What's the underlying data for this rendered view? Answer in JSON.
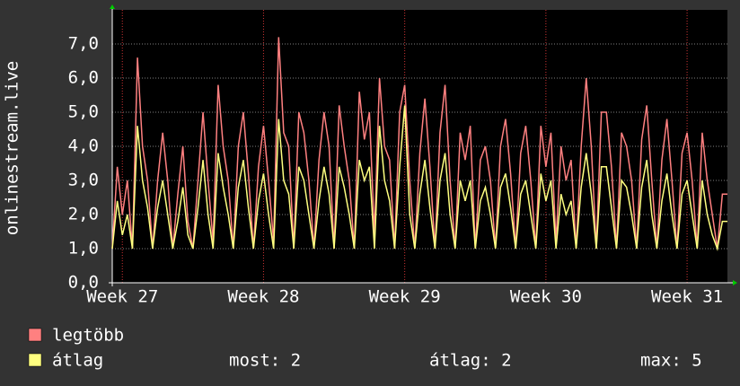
{
  "chart_data": {
    "type": "line",
    "ylabel": "onlinestream.live",
    "x": [
      0,
      0.25,
      0.5,
      0.75,
      1,
      1.25,
      1.5,
      1.75,
      2,
      2.25,
      2.5,
      2.75,
      3,
      3.25,
      3.5,
      3.75,
      4,
      4.25,
      4.5,
      4.75,
      5,
      5.25,
      5.5,
      5.75,
      6,
      6.25,
      6.5,
      6.75,
      7,
      7.25,
      7.5,
      7.75,
      8,
      8.25,
      8.5,
      8.75,
      9,
      9.25,
      9.5,
      9.75,
      10,
      10.25,
      10.5,
      10.75,
      11,
      11.25,
      11.5,
      11.75,
      12,
      12.25,
      12.5,
      12.75,
      13,
      13.25,
      13.5,
      13.75,
      14,
      14.25,
      14.5,
      14.75,
      15,
      15.25,
      15.5,
      15.75,
      16,
      16.25,
      16.5,
      16.75,
      17,
      17.25,
      17.5,
      17.75,
      18,
      18.25,
      18.5,
      18.75,
      19,
      19.25,
      19.5,
      19.75,
      20,
      20.25,
      20.5,
      20.75,
      21,
      21.25,
      21.5,
      21.75,
      22,
      22.25,
      22.5,
      22.75,
      23,
      23.25,
      23.5,
      23.75,
      24,
      24.25,
      24.5,
      24.75,
      25,
      25.25,
      25.5,
      25.75,
      26,
      26.25,
      26.5,
      26.75,
      27,
      27.25,
      27.5,
      27.75,
      28,
      28.25,
      28.5,
      28.75,
      29,
      29.25,
      29.5,
      29.75,
      30,
      30.25,
      30.5
    ],
    "series": [
      {
        "name": "legtöbb",
        "color": "#ff8080",
        "values": [
          1.0,
          3.4,
          2.0,
          3.0,
          1.0,
          6.6,
          4.0,
          3.0,
          1.0,
          3.0,
          4.4,
          3.0,
          1.0,
          2.6,
          4.0,
          1.8,
          1.0,
          3.0,
          5.0,
          3.0,
          1.2,
          5.8,
          4.0,
          3.0,
          1.0,
          4.0,
          5.0,
          3.2,
          1.0,
          3.4,
          4.6,
          3.0,
          1.2,
          7.2,
          4.4,
          4.0,
          1.0,
          5.0,
          4.4,
          3.0,
          1.0,
          3.6,
          5.0,
          4.0,
          1.0,
          5.2,
          4.0,
          3.0,
          1.0,
          5.6,
          4.2,
          5.0,
          1.4,
          6.0,
          4.0,
          3.6,
          1.0,
          5.0,
          5.8,
          3.0,
          1.0,
          3.8,
          5.4,
          3.4,
          1.0,
          4.4,
          5.8,
          3.0,
          1.0,
          4.4,
          3.6,
          4.6,
          1.0,
          3.6,
          4.0,
          3.0,
          1.0,
          4.0,
          4.8,
          3.2,
          1.0,
          3.8,
          4.6,
          3.0,
          1.0,
          4.6,
          3.4,
          4.4,
          1.2,
          4.0,
          3.0,
          3.6,
          1.0,
          4.0,
          6.0,
          4.0,
          1.0,
          5.0,
          5.0,
          3.4,
          1.0,
          4.4,
          4.0,
          3.0,
          1.0,
          4.2,
          5.2,
          3.0,
          1.0,
          3.6,
          4.8,
          3.0,
          1.0,
          3.8,
          4.4,
          3.0,
          1.0,
          4.4,
          3.0,
          2.0,
          1.0,
          2.6,
          2.6
        ]
      },
      {
        "name": "átlag",
        "color": "#ffff80",
        "values": [
          1.0,
          2.4,
          1.4,
          2.0,
          1.0,
          4.6,
          3.0,
          2.2,
          1.0,
          2.2,
          3.0,
          2.0,
          1.0,
          1.8,
          2.8,
          1.4,
          1.0,
          2.2,
          3.6,
          2.0,
          1.0,
          3.8,
          2.8,
          2.0,
          1.0,
          2.8,
          3.6,
          2.2,
          1.0,
          2.4,
          3.2,
          2.0,
          1.0,
          4.8,
          3.0,
          2.6,
          1.0,
          3.4,
          3.0,
          2.0,
          1.0,
          2.4,
          3.4,
          2.6,
          1.0,
          3.4,
          2.8,
          2.0,
          1.0,
          3.6,
          3.0,
          3.4,
          1.0,
          4.6,
          3.0,
          2.4,
          1.0,
          3.4,
          5.2,
          2.0,
          1.0,
          2.6,
          3.6,
          2.2,
          1.0,
          3.0,
          3.8,
          2.0,
          1.0,
          3.0,
          2.4,
          3.0,
          1.0,
          2.4,
          2.8,
          2.0,
          1.0,
          2.8,
          3.2,
          2.2,
          1.0,
          2.6,
          3.0,
          2.0,
          1.0,
          3.2,
          2.4,
          3.0,
          1.0,
          2.6,
          2.0,
          2.4,
          1.0,
          2.8,
          3.8,
          2.6,
          1.0,
          3.4,
          3.4,
          2.2,
          1.0,
          3.0,
          2.8,
          2.0,
          1.0,
          2.8,
          3.6,
          2.0,
          1.0,
          2.4,
          3.2,
          2.0,
          1.0,
          2.6,
          3.0,
          2.0,
          1.0,
          3.0,
          2.0,
          1.4,
          1.0,
          1.8,
          1.8
        ]
      }
    ],
    "xlim": [
      0,
      30.5
    ],
    "xticks": [
      {
        "value": 0.5,
        "label": "Week 27"
      },
      {
        "value": 7.5,
        "label": "Week 28"
      },
      {
        "value": 14.5,
        "label": "Week 29"
      },
      {
        "value": 21.5,
        "label": "Week 30"
      },
      {
        "value": 28.5,
        "label": "Week 31"
      }
    ],
    "ylim": [
      0,
      8
    ],
    "yticks": [
      {
        "value": 0,
        "label": "0,0"
      },
      {
        "value": 1,
        "label": "1,0"
      },
      {
        "value": 2,
        "label": "2,0"
      },
      {
        "value": 3,
        "label": "3,0"
      },
      {
        "value": 4,
        "label": "4,0"
      },
      {
        "value": 5,
        "label": "5,0"
      },
      {
        "value": 6,
        "label": "6,0"
      },
      {
        "value": 7,
        "label": "7,0"
      }
    ],
    "grid": true,
    "stats": [
      "most: 2",
      "átlag: 2",
      "max: 5"
    ]
  }
}
